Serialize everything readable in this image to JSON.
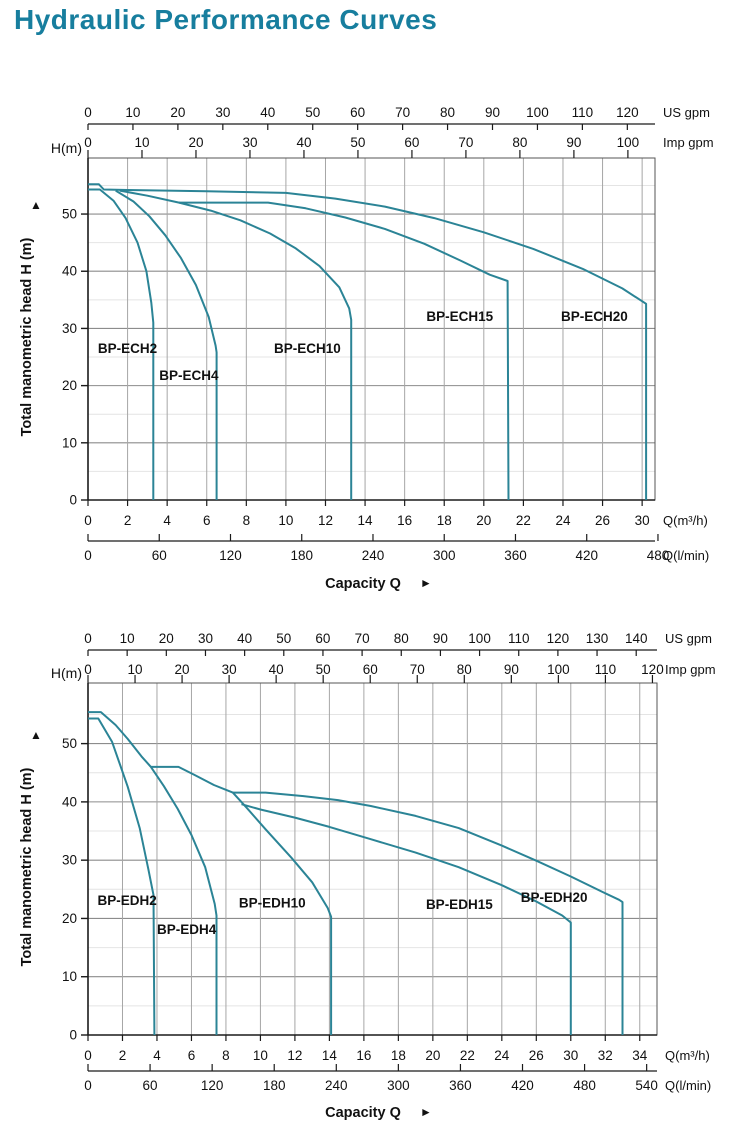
{
  "title": "Hydraulic Performance Curves",
  "colors": {
    "title": "#177e9e",
    "curve": "#2b8496",
    "grid_major_h": "#8c8c8c",
    "grid_minor_h": "#e4e4e4",
    "grid_v": "#a6a6a6",
    "axis": "#1a1a1a",
    "border": "#555555",
    "text": "#111111"
  },
  "chart_data": [
    {
      "id": "ech",
      "type": "line",
      "h_unit_label": "H(m)",
      "y_axis_title": "Total manometric head H (m)",
      "y_axis_arrow": "▲",
      "capacity_label": "Capacity Q",
      "capacity_arrow": "►",
      "y_ticks": [
        0,
        10,
        20,
        30,
        40,
        50
      ],
      "y_max": 59.8,
      "x_max": 28.65,
      "top_axes": [
        {
          "unit": "US gpm",
          "tick_values": [
            0,
            10,
            20,
            30,
            40,
            50,
            60,
            70,
            80,
            90,
            100,
            110,
            120
          ],
          "m3h_per_unit": 0.2271
        },
        {
          "unit": "Imp gpm",
          "tick_values": [
            0,
            10,
            20,
            30,
            40,
            50,
            60,
            70,
            80,
            90,
            100
          ],
          "m3h_per_unit": 0.2728
        }
      ],
      "m3h_axis": {
        "unit": "Q(m³/h)",
        "tick_step": 2,
        "tick_labels": [
          "0",
          "2",
          "4",
          "6",
          "8",
          "10",
          "12",
          "14",
          "16",
          "18",
          "20",
          "22",
          "24",
          "26",
          "30"
        ]
      },
      "lmin_axis": {
        "unit": "Q(l/min)",
        "tick_values": [
          0,
          60,
          120,
          180,
          240,
          300,
          360,
          420,
          480
        ],
        "m3h_per_unit": 0.06
      },
      "series": [
        {
          "name": "BP-ECH2",
          "label_at": [
            0.5,
            26.6
          ],
          "points": [
            [
              0,
              54.3
            ],
            [
              0.6,
              54.3
            ],
            [
              1.3,
              52.3
            ],
            [
              1.9,
              49.3
            ],
            [
              2.5,
              45
            ],
            [
              2.95,
              40
            ],
            [
              3.2,
              34.5
            ],
            [
              3.3,
              31
            ],
            [
              3.3,
              0
            ]
          ]
        },
        {
          "name": "BP-ECH4",
          "label_at": [
            3.6,
            21.9
          ],
          "points": [
            [
              1.4,
              54.1
            ],
            [
              2.3,
              52.2
            ],
            [
              3.1,
              49.6
            ],
            [
              3.9,
              46.3
            ],
            [
              4.7,
              42.3
            ],
            [
              5.45,
              37.6
            ],
            [
              6.1,
              32
            ],
            [
              6.45,
              27
            ],
            [
              6.5,
              25.8
            ],
            [
              6.5,
              0
            ]
          ]
        },
        {
          "name": "BP-ECH10",
          "label_at": [
            9.4,
            26.6
          ],
          "points": [
            [
              1.6,
              54.1
            ],
            [
              3,
              53.2
            ],
            [
              4.6,
              52
            ],
            [
              6.2,
              50.6
            ],
            [
              7.7,
              48.9
            ],
            [
              9.2,
              46.6
            ],
            [
              10.5,
              44
            ],
            [
              11.7,
              40.9
            ],
            [
              12.7,
              37.2
            ],
            [
              13.2,
              33.5
            ],
            [
              13.3,
              31.5
            ],
            [
              13.3,
              0
            ]
          ]
        },
        {
          "name": "BP-ECH15",
          "label_at": [
            17.1,
            32.2
          ],
          "points": [
            [
              4.6,
              52
            ],
            [
              9.1,
              52
            ],
            [
              11,
              51
            ],
            [
              13,
              49.4
            ],
            [
              15,
              47.4
            ],
            [
              17,
              44.8
            ],
            [
              18.8,
              41.9
            ],
            [
              20.3,
              39.4
            ],
            [
              21.2,
              38.3
            ],
            [
              21.25,
              0
            ]
          ]
        },
        {
          "name": "BP-ECH20",
          "label_at": [
            23.9,
            32.2
          ],
          "points": [
            [
              0,
              55.2
            ],
            [
              0.55,
              55.2
            ],
            [
              0.8,
              54.3
            ],
            [
              2,
              54.2
            ],
            [
              6,
              54
            ],
            [
              10,
              53.7
            ],
            [
              12.5,
              52.7
            ],
            [
              15,
              51.3
            ],
            [
              17.5,
              49.3
            ],
            [
              20,
              46.8
            ],
            [
              22.5,
              43.9
            ],
            [
              25,
              40.4
            ],
            [
              27,
              37
            ],
            [
              28.2,
              34.3
            ],
            [
              28.2,
              0
            ]
          ]
        }
      ]
    },
    {
      "id": "edh",
      "type": "line",
      "h_unit_label": "H(m)",
      "y_axis_title": "Total manometric head H (m)",
      "y_axis_arrow": "▲",
      "capacity_label": "Capacity Q",
      "capacity_arrow": "►",
      "y_ticks": [
        0,
        10,
        20,
        30,
        40,
        50
      ],
      "y_max": 60.4,
      "x_max": 33.0,
      "top_axes": [
        {
          "unit": "US gpm",
          "tick_values": [
            0,
            10,
            20,
            30,
            40,
            50,
            60,
            70,
            80,
            90,
            100,
            110,
            120,
            130,
            140
          ],
          "m3h_per_unit": 0.2271
        },
        {
          "unit": "Imp gpm",
          "tick_values": [
            0,
            10,
            20,
            30,
            40,
            50,
            60,
            70,
            80,
            90,
            100,
            110,
            120
          ],
          "m3h_per_unit": 0.2728
        }
      ],
      "m3h_axis": {
        "unit": "Q(m³/h)",
        "tick_step": 2,
        "tick_labels": [
          "0",
          "2",
          "4",
          "6",
          "8",
          "10",
          "12",
          "14",
          "16",
          "18",
          "20",
          "22",
          "24",
          "26",
          "30",
          "32",
          "34"
        ]
      },
      "lmin_axis": {
        "unit": "Q(l/min)",
        "tick_values": [
          0,
          60,
          120,
          180,
          240,
          300,
          360,
          420,
          480,
          540
        ],
        "m3h_per_unit": 0.06
      },
      "series": [
        {
          "name": "BP-EDH2",
          "label_at": [
            0.55,
            23.2
          ],
          "points": [
            [
              0,
              54.3
            ],
            [
              0.6,
              54.3
            ],
            [
              1.4,
              50.3
            ],
            [
              2.3,
              42.6
            ],
            [
              3,
              35.5
            ],
            [
              3.5,
              28.5
            ],
            [
              3.8,
              24
            ],
            [
              3.85,
              0
            ]
          ]
        },
        {
          "name": "BP-EDH4",
          "label_at": [
            4.0,
            18.2
          ],
          "points": [
            [
              0,
              55.4
            ],
            [
              0.75,
              55.4
            ],
            [
              1.6,
              53.2
            ],
            [
              2.3,
              50.8
            ],
            [
              3.1,
              47.8
            ],
            [
              3.65,
              46
            ],
            [
              4.4,
              42.7
            ],
            [
              5.2,
              38.8
            ],
            [
              6,
              34.3
            ],
            [
              6.8,
              28.8
            ],
            [
              7.35,
              22.5
            ],
            [
              7.45,
              20.5
            ],
            [
              7.45,
              0
            ]
          ]
        },
        {
          "name": "BP-EDH10",
          "label_at": [
            8.75,
            22.7
          ],
          "points": [
            [
              3.65,
              46
            ],
            [
              5.25,
              46
            ],
            [
              6.2,
              44.6
            ],
            [
              7.3,
              42.9
            ],
            [
              8.4,
              41.6
            ],
            [
              9.2,
              39
            ],
            [
              10.3,
              35.3
            ],
            [
              11.8,
              30.4
            ],
            [
              13,
              26.2
            ],
            [
              13.9,
              21.8
            ],
            [
              14.1,
              20.3
            ],
            [
              14.1,
              0
            ]
          ]
        },
        {
          "name": "BP-EDH15",
          "label_at": [
            19.6,
            22.5
          ],
          "points": [
            [
              8.9,
              39.6
            ],
            [
              10,
              38.7
            ],
            [
              12,
              37.3
            ],
            [
              14,
              35.7
            ],
            [
              16.4,
              33.6
            ],
            [
              19,
              31.3
            ],
            [
              21.5,
              28.8
            ],
            [
              24,
              25.7
            ],
            [
              26,
              22.9
            ],
            [
              27.5,
              20.5
            ],
            [
              28,
              19.3
            ],
            [
              28,
              0
            ]
          ]
        },
        {
          "name": "BP-EDH20",
          "label_at": [
            25.1,
            23.7
          ],
          "points": [
            [
              8.4,
              41.6
            ],
            [
              10.3,
              41.6
            ],
            [
              12.5,
              41
            ],
            [
              14.5,
              40.3
            ],
            [
              16.4,
              39.3
            ],
            [
              19,
              37.6
            ],
            [
              21.5,
              35.5
            ],
            [
              24,
              32.5
            ],
            [
              26,
              29.9
            ],
            [
              28,
              27.2
            ],
            [
              29.8,
              24.6
            ],
            [
              30.8,
              23.2
            ],
            [
              31,
              22.8
            ],
            [
              31,
              0
            ]
          ]
        }
      ]
    }
  ]
}
